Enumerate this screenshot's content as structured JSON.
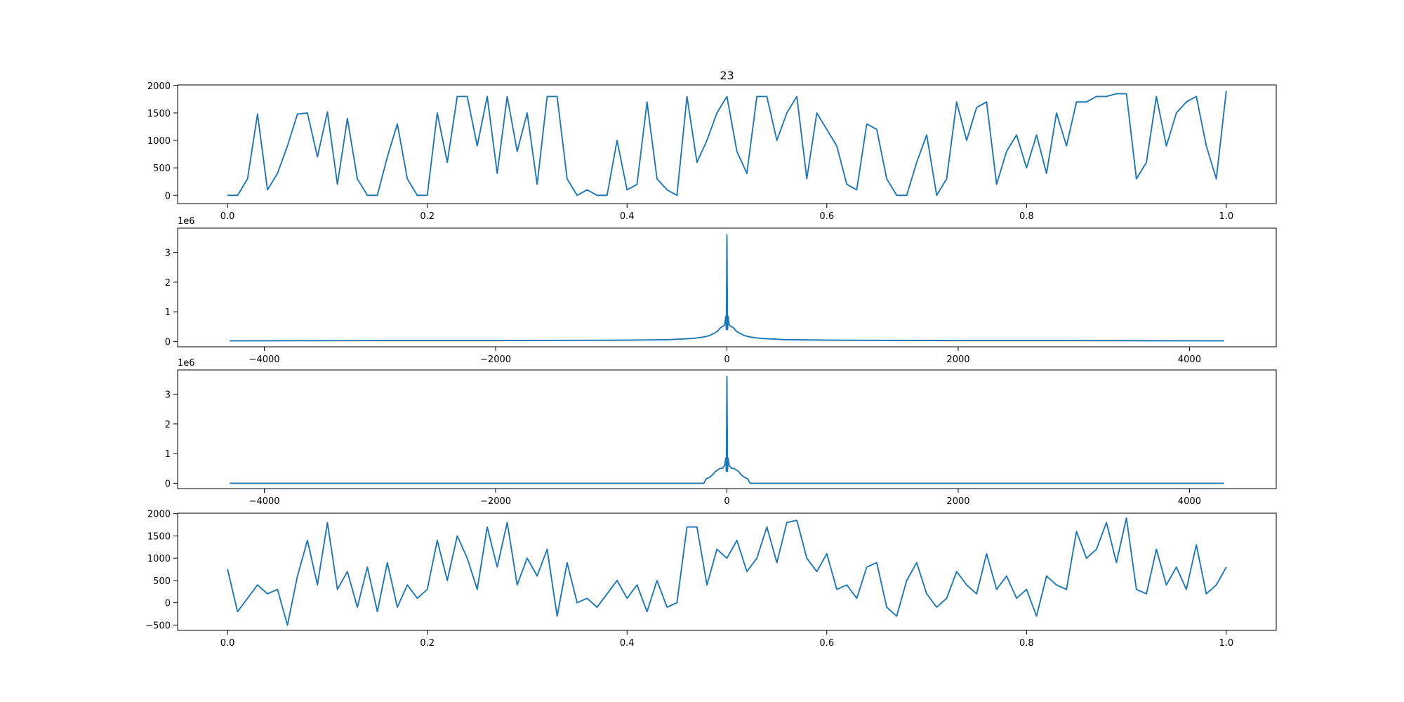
{
  "chart_data": [
    {
      "type": "line",
      "title": "23",
      "color": "#1f77b4",
      "x": [
        0,
        0.01,
        0.02,
        0.03,
        0.04,
        0.05,
        0.06,
        0.07,
        0.08,
        0.09,
        0.1,
        0.11,
        0.12,
        0.13,
        0.14,
        0.15,
        0.16,
        0.17,
        0.18,
        0.19,
        0.2,
        0.21,
        0.22,
        0.23,
        0.24,
        0.25,
        0.26,
        0.27,
        0.28,
        0.29,
        0.3,
        0.31,
        0.32,
        0.33,
        0.34,
        0.35,
        0.36,
        0.37,
        0.38,
        0.39,
        0.4,
        0.41,
        0.42,
        0.43,
        0.44,
        0.45,
        0.46,
        0.47,
        0.48,
        0.49,
        0.5,
        0.51,
        0.52,
        0.53,
        0.54,
        0.55,
        0.56,
        0.57,
        0.58,
        0.59,
        0.6,
        0.61,
        0.62,
        0.63,
        0.64,
        0.65,
        0.66,
        0.67,
        0.68,
        0.69,
        0.7,
        0.71,
        0.72,
        0.73,
        0.74,
        0.75,
        0.76,
        0.77,
        0.78,
        0.79,
        0.8,
        0.81,
        0.82,
        0.83,
        0.84,
        0.85,
        0.86,
        0.87,
        0.88,
        0.89,
        0.9,
        0.91,
        0.92,
        0.93,
        0.94,
        0.95,
        0.96,
        0.97,
        0.98,
        0.99,
        1
      ],
      "values": [
        0,
        0,
        300,
        1480,
        100,
        400,
        900,
        1480,
        1500,
        700,
        1520,
        200,
        1400,
        300,
        0,
        0,
        700,
        1300,
        300,
        0,
        0,
        1500,
        600,
        1800,
        1800,
        900,
        1800,
        400,
        1800,
        800,
        1500,
        200,
        1800,
        1800,
        300,
        0,
        100,
        0,
        0,
        1000,
        100,
        200,
        1700,
        300,
        100,
        0,
        1800,
        600,
        1000,
        1500,
        1800,
        800,
        400,
        1800,
        1800,
        1000,
        1500,
        1800,
        300,
        1500,
        1200,
        900,
        200,
        100,
        1300,
        1200,
        300,
        0,
        0,
        600,
        1100,
        0,
        300,
        1700,
        1000,
        1600,
        1700,
        200,
        800,
        1100,
        500,
        1100,
        400,
        1500,
        900,
        1700,
        1700,
        1800,
        1800,
        1850,
        1850,
        300,
        600,
        1800,
        900,
        1500,
        1700,
        1800,
        900,
        300,
        1900
      ],
      "xlim": [
        -0.05,
        1.05
      ],
      "ylim": [
        -150,
        2010
      ],
      "xticks": [
        {
          "value": 0,
          "label": "0.0"
        },
        0.2,
        0.4,
        0.6,
        0.8,
        {
          "value": 1,
          "label": "1.0"
        }
      ],
      "yticks": [
        0,
        500,
        1000,
        1500,
        2000
      ]
    },
    {
      "type": "line",
      "color": "#1f77b4",
      "offset_text": "1e6",
      "x": [
        -4300,
        -3000,
        -2000,
        -1000,
        -500,
        -300,
        -200,
        -150,
        -100,
        -80,
        -60,
        -40,
        -20,
        -10,
        -5,
        0,
        5,
        10,
        20,
        40,
        60,
        80,
        100,
        150,
        200,
        300,
        500,
        1000,
        2000,
        3000,
        4300
      ],
      "values": [
        0.02,
        0.03,
        0.03,
        0.04,
        0.06,
        0.1,
        0.15,
        0.2,
        0.3,
        0.35,
        0.45,
        0.5,
        0.55,
        0.85,
        0.4,
        3.6,
        0.4,
        0.85,
        0.55,
        0.5,
        0.45,
        0.35,
        0.3,
        0.2,
        0.15,
        0.1,
        0.06,
        0.04,
        0.03,
        0.03,
        0.02
      ],
      "xlim": [
        -4750,
        4750
      ],
      "ylim": [
        -0.18,
        3.82
      ],
      "xticks": [
        {
          "value": -4000,
          "label": "−4000"
        },
        {
          "value": -2000,
          "label": "−2000"
        },
        0,
        2000,
        4000
      ],
      "yticks": [
        0,
        1,
        2,
        3
      ]
    },
    {
      "type": "line",
      "color": "#1f77b4",
      "offset_text": "1e6",
      "x": [
        -4300,
        -200,
        -180,
        -150,
        -120,
        -100,
        -80,
        -60,
        -40,
        -20,
        -10,
        -5,
        0,
        5,
        10,
        20,
        40,
        60,
        80,
        100,
        120,
        150,
        180,
        200,
        4300
      ],
      "values": [
        0,
        0,
        0.15,
        0.2,
        0.3,
        0.4,
        0.45,
        0.5,
        0.5,
        0.6,
        0.85,
        0.4,
        3.6,
        0.4,
        0.85,
        0.6,
        0.5,
        0.5,
        0.45,
        0.4,
        0.3,
        0.2,
        0.15,
        0,
        0
      ],
      "xlim": [
        -4750,
        4750
      ],
      "ylim": [
        -0.18,
        3.82
      ],
      "xticks": [
        {
          "value": -4000,
          "label": "−4000"
        },
        {
          "value": -2000,
          "label": "−2000"
        },
        0,
        2000,
        4000
      ],
      "yticks": [
        0,
        1,
        2,
        3
      ]
    },
    {
      "type": "line",
      "color": "#1f77b4",
      "x": [
        0,
        0.01,
        0.02,
        0.03,
        0.04,
        0.05,
        0.06,
        0.07,
        0.08,
        0.09,
        0.1,
        0.11,
        0.12,
        0.13,
        0.14,
        0.15,
        0.16,
        0.17,
        0.18,
        0.19,
        0.2,
        0.21,
        0.22,
        0.23,
        0.24,
        0.25,
        0.26,
        0.27,
        0.28,
        0.29,
        0.3,
        0.31,
        0.32,
        0.33,
        0.34,
        0.35,
        0.36,
        0.37,
        0.38,
        0.39,
        0.4,
        0.41,
        0.42,
        0.43,
        0.44,
        0.45,
        0.46,
        0.47,
        0.48,
        0.49,
        0.5,
        0.51,
        0.52,
        0.53,
        0.54,
        0.55,
        0.56,
        0.57,
        0.58,
        0.59,
        0.6,
        0.61,
        0.62,
        0.63,
        0.64,
        0.65,
        0.66,
        0.67,
        0.68,
        0.69,
        0.7,
        0.71,
        0.72,
        0.73,
        0.74,
        0.75,
        0.76,
        0.77,
        0.78,
        0.79,
        0.8,
        0.81,
        0.82,
        0.83,
        0.84,
        0.85,
        0.86,
        0.87,
        0.88,
        0.89,
        0.9,
        0.91,
        0.92,
        0.93,
        0.94,
        0.95,
        0.96,
        0.97,
        0.98,
        0.99,
        1
      ],
      "values": [
        750,
        -200,
        100,
        400,
        200,
        300,
        -500,
        600,
        1400,
        400,
        1800,
        300,
        700,
        -100,
        800,
        -200,
        900,
        -100,
        400,
        100,
        300,
        1400,
        500,
        1500,
        1000,
        300,
        1700,
        800,
        1800,
        400,
        1000,
        600,
        1200,
        -300,
        900,
        0,
        100,
        -100,
        200,
        500,
        100,
        400,
        -200,
        500,
        -100,
        0,
        1700,
        1700,
        400,
        1200,
        1000,
        1400,
        700,
        1000,
        1700,
        900,
        1800,
        1850,
        1000,
        700,
        1100,
        300,
        400,
        100,
        800,
        900,
        -100,
        -300,
        500,
        900,
        200,
        -100,
        100,
        700,
        400,
        200,
        1100,
        300,
        600,
        100,
        300,
        -300,
        600,
        400,
        300,
        1600,
        1000,
        1200,
        1800,
        900,
        1900,
        300,
        200,
        1200,
        400,
        800,
        300,
        1300,
        200,
        400,
        800
      ],
      "xlim": [
        -0.05,
        1.05
      ],
      "ylim": [
        -620,
        2010
      ],
      "xticks": [
        {
          "value": 0,
          "label": "0.0"
        },
        0.2,
        0.4,
        0.6,
        0.8,
        {
          "value": 1,
          "label": "1.0"
        }
      ],
      "yticks": [
        {
          "value": -500,
          "label": "−500"
        },
        0,
        500,
        1000,
        1500,
        2000
      ]
    }
  ]
}
